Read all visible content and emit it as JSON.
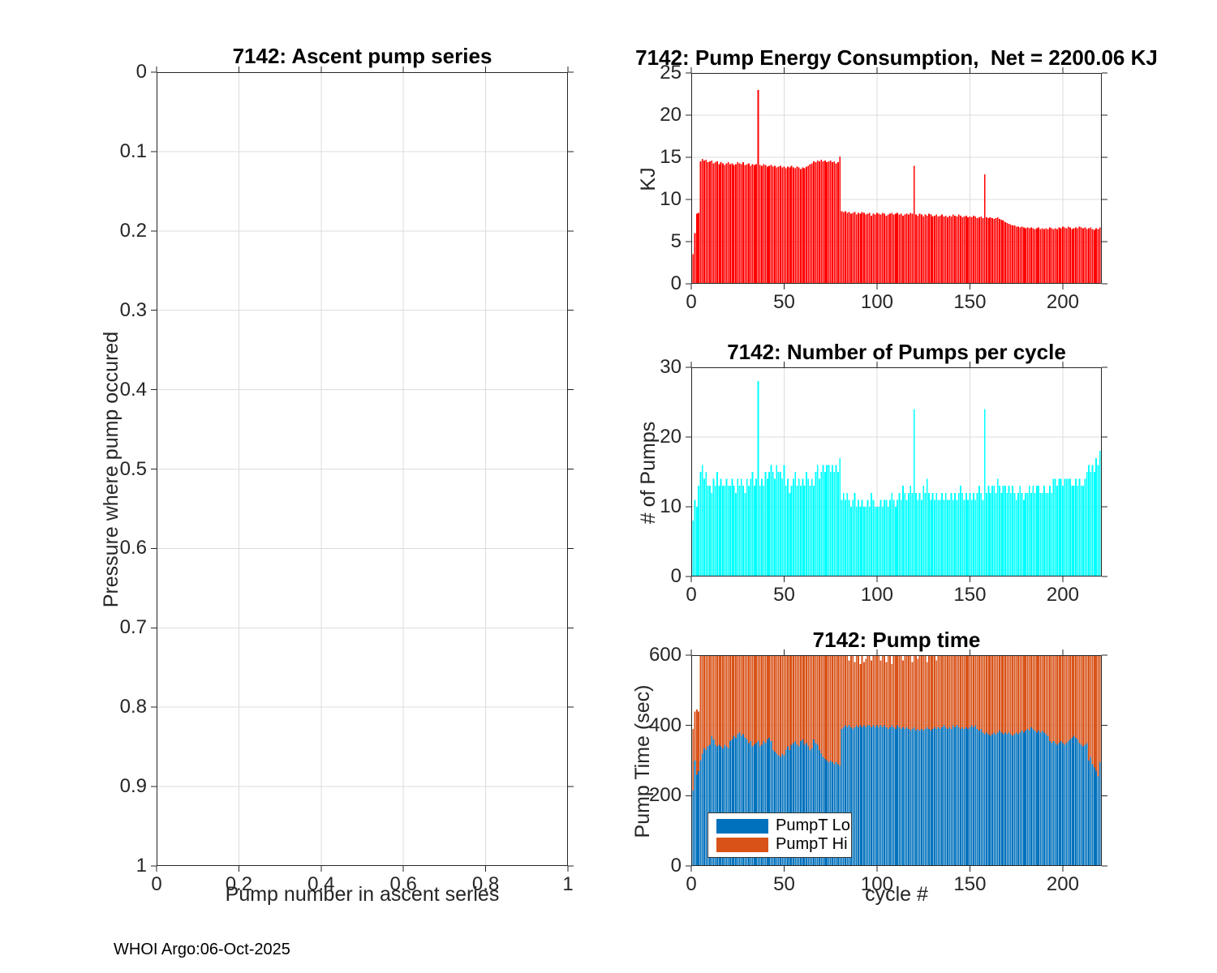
{
  "figure": {
    "footer_text": "WHOI Argo:06-Oct-2025"
  },
  "chart_data": [
    {
      "type": "bar",
      "title": "7142: Ascent pump series",
      "xlabel": "Pump number in ascent series",
      "ylabel": "Pressure where pump occured",
      "xlim": [
        0,
        1
      ],
      "ylim": [
        0,
        1
      ],
      "y_reversed": true,
      "grid": true,
      "xticks": [
        0,
        0.2,
        0.4,
        0.6,
        0.8,
        1
      ],
      "xtick_labels": [
        "0",
        "0.2",
        "0.4",
        "0.6",
        "0.8",
        "1"
      ],
      "yticks": [
        0,
        0.1,
        0.2,
        0.3,
        0.4,
        0.5,
        0.6,
        0.7,
        0.8,
        0.9,
        1
      ],
      "ytick_labels": [
        "0",
        "0.1",
        "0.2",
        "0.3",
        "0.4",
        "0.5",
        "0.6",
        "0.7",
        "0.8",
        "0.9",
        "1"
      ],
      "bar_color": "#0072bd",
      "values": []
    },
    {
      "type": "bar",
      "title": "7142: Pump Energy Consumption,  Net = 2200.06 KJ",
      "net_total_kj": "2200.06",
      "ylabel": "KJ",
      "bar_color": "#ff0000",
      "xlim": [
        0,
        221
      ],
      "ylim": [
        0,
        25
      ],
      "grid": true,
      "xticks": [
        0,
        50,
        100,
        150,
        200
      ],
      "xtick_labels": [
        "0",
        "50",
        "100",
        "150",
        "200"
      ],
      "yticks": [
        0,
        5,
        10,
        15,
        20,
        25
      ],
      "ytick_labels": [
        "0",
        "5",
        "10",
        "15",
        "20",
        "25"
      ],
      "values": [
        3.5,
        6,
        8.3,
        8.4,
        14.5,
        14.8,
        14.6,
        14.7,
        14.4,
        14.5,
        14.6,
        14.3,
        14.4,
        14.5,
        14.2,
        14.4,
        14.3,
        14.1,
        14.3,
        14.4,
        14.2,
        14.3,
        14.1,
        14.2,
        14.4,
        14.3,
        14.2,
        14.4,
        14.1,
        14.2,
        14.3,
        14,
        14.2,
        14.1,
        14.2,
        23,
        14.1,
        14,
        14.2,
        14.1,
        13.9,
        14,
        14.1,
        13.9,
        14,
        13.8,
        13.9,
        14,
        13.8,
        13.9,
        13.7,
        13.9,
        13.8,
        14,
        13.8,
        13.7,
        13.9,
        13.8,
        13.6,
        13.8,
        13.7,
        13.9,
        14,
        14.2,
        14.3,
        14.5,
        14.4,
        14.6,
        14.5,
        14.7,
        14.5,
        14.6,
        14.4,
        14.5,
        14.6,
        14.4,
        14.5,
        14.3,
        14.4,
        15.1,
        8.6,
        8.5,
        8.6,
        8.4,
        8.5,
        8.3,
        8.4,
        8.5,
        8.2,
        8.4,
        8.3,
        8.5,
        8.4,
        8.2,
        8.3,
        8.4,
        8.1,
        8.3,
        8.2,
        8.4,
        8.3,
        8.2,
        8.4,
        8.3,
        8.1,
        8.2,
        8.3,
        8.4,
        8.2,
        8.3,
        8.4,
        8.2,
        8.3,
        8.1,
        8.2,
        8.3,
        8.2,
        8.4,
        8.3,
        14,
        8.2,
        8.1,
        8.3,
        8.2,
        8,
        8.2,
        8.1,
        8.3,
        8.2,
        8,
        8.1,
        8.2,
        8,
        8.1,
        8.2,
        8,
        8.1,
        7.9,
        8.1,
        8,
        8.2,
        8.1,
        8,
        8.2,
        8.1,
        7.9,
        8,
        8.1,
        7.9,
        8,
        7.9,
        8.1,
        8,
        7.8,
        7.9,
        8,
        7.8,
        13,
        7.9,
        7.8,
        7.9,
        7.8,
        7.7,
        7.8,
        7.9,
        7.7,
        7.6,
        7.5,
        7.3,
        7.2,
        7.1,
        7,
        6.9,
        6.9,
        6.8,
        6.8,
        6.7,
        6.8,
        6.7,
        6.6,
        6.7,
        6.6,
        6.7,
        6.6,
        6.5,
        6.6,
        6.7,
        6.5,
        6.6,
        6.5,
        6.6,
        6.5,
        6.7,
        6.6,
        6.5,
        6.6,
        6.5,
        6.7,
        6.6,
        6.8,
        6.7,
        6.6,
        6.8,
        6.7,
        6.5,
        6.6,
        6.7,
        6.6,
        6.8,
        6.7,
        6.6,
        6.7,
        6.5,
        6.6,
        6.7,
        6.5,
        6.4,
        6.6,
        6.5,
        6.7
      ]
    },
    {
      "type": "bar",
      "title": "7142: Number of Pumps per cycle",
      "ylabel": "# of Pumps",
      "bar_color": "#00ffff",
      "xlim": [
        0,
        221
      ],
      "ylim": [
        0,
        30
      ],
      "grid": true,
      "xticks": [
        0,
        50,
        100,
        150,
        200
      ],
      "xtick_labels": [
        "0",
        "50",
        "100",
        "150",
        "200"
      ],
      "yticks": [
        0,
        10,
        20,
        30
      ],
      "ytick_labels": [
        "0",
        "10",
        "20",
        "30"
      ],
      "values": [
        8,
        11,
        10,
        13,
        15,
        16,
        14,
        15,
        13,
        13,
        12,
        14,
        13,
        15,
        13,
        14,
        13,
        13,
        14,
        13,
        13,
        14,
        13,
        12,
        14,
        13,
        14,
        13,
        12,
        14,
        13,
        14,
        15,
        13,
        14,
        28,
        13,
        14,
        13,
        15,
        14,
        15,
        16,
        15,
        14,
        16,
        15,
        15,
        14,
        16,
        13,
        14,
        12,
        13,
        14,
        15,
        13,
        14,
        13,
        14,
        13,
        15,
        14,
        13,
        14,
        13,
        15,
        16,
        14,
        15,
        16,
        15,
        16,
        16,
        15,
        16,
        15,
        16,
        15,
        17,
        11,
        12,
        11,
        12,
        11,
        10,
        11,
        12,
        10,
        11,
        10,
        11,
        10,
        10,
        11,
        10,
        12,
        11,
        10,
        10,
        10,
        11,
        10,
        11,
        11,
        10,
        11,
        12,
        11,
        10,
        11,
        12,
        11,
        13,
        12,
        11,
        12,
        13,
        12,
        24,
        12,
        11,
        12,
        11,
        13,
        12,
        14,
        12,
        11,
        12,
        11,
        12,
        11,
        11,
        12,
        11,
        12,
        11,
        11,
        12,
        11,
        12,
        11,
        12,
        13,
        12,
        11,
        12,
        11,
        12,
        11,
        12,
        11,
        12,
        13,
        12,
        11,
        24,
        12,
        13,
        12,
        13,
        13,
        12,
        14,
        13,
        12,
        13,
        13,
        12,
        13,
        12,
        13,
        12,
        11,
        12,
        13,
        12,
        11,
        12,
        12,
        13,
        12,
        13,
        12,
        13,
        13,
        12,
        12,
        13,
        12,
        12,
        13,
        12,
        14,
        14,
        13,
        14,
        14,
        13,
        14,
        14,
        14,
        14,
        13,
        13,
        14,
        13,
        14,
        13,
        13,
        14,
        15,
        16,
        15,
        16,
        15,
        17,
        16,
        18
      ]
    },
    {
      "type": "stacked-bar",
      "title": "7142: Pump time",
      "xlabel": "cycle #",
      "ylabel": "Pump Time (sec)",
      "xlim": [
        0,
        221
      ],
      "ylim": [
        0,
        600
      ],
      "grid": true,
      "xticks": [
        0,
        50,
        100,
        150,
        200
      ],
      "xtick_labels": [
        "0",
        "50",
        "100",
        "150",
        "200"
      ],
      "yticks": [
        0,
        200,
        400,
        600
      ],
      "ytick_labels": [
        "0",
        "200",
        "400",
        "600"
      ],
      "legend": {
        "position": "southwest"
      },
      "series": [
        {
          "name": "PumpT Lo",
          "color": "#0072bd",
          "values": [
            215,
            300,
            260,
            270,
            300,
            320,
            335,
            330,
            340,
            345,
            370,
            360,
            345,
            340,
            345,
            340,
            335,
            345,
            340,
            335,
            355,
            360,
            370,
            365,
            375,
            380,
            370,
            375,
            365,
            360,
            350,
            355,
            340,
            345,
            350,
            355,
            340,
            345,
            355,
            350,
            360,
            365,
            355,
            330,
            325,
            320,
            315,
            310,
            320,
            315,
            330,
            340,
            330,
            345,
            350,
            355,
            345,
            340,
            355,
            360,
            345,
            350,
            340,
            330,
            335,
            360,
            350,
            345,
            330,
            320,
            310,
            305,
            300,
            295,
            300,
            295,
            290,
            295,
            290,
            285,
            390,
            395,
            400,
            395,
            400,
            395,
            390,
            395,
            400,
            395,
            400,
            395,
            400,
            395,
            400,
            400,
            395,
            400,
            395,
            400,
            395,
            400,
            395,
            400,
            395,
            390,
            395,
            400,
            395,
            390,
            400,
            395,
            390,
            395,
            390,
            395,
            390,
            385,
            390,
            395,
            385,
            390,
            385,
            390,
            385,
            390,
            395,
            390,
            385,
            390,
            395,
            390,
            395,
            390,
            395,
            400,
            395,
            390,
            395,
            390,
            400,
            395,
            400,
            395,
            390,
            395,
            390,
            395,
            390,
            395,
            400,
            395,
            400,
            390,
            385,
            390,
            380,
            375,
            380,
            375,
            370,
            375,
            380,
            375,
            380,
            385,
            380,
            375,
            380,
            375,
            380,
            375,
            370,
            375,
            380,
            375,
            380,
            385,
            380,
            385,
            390,
            385,
            395,
            390,
            385,
            380,
            385,
            380,
            385,
            380,
            375,
            370,
            355,
            350,
            355,
            350,
            345,
            350,
            355,
            350,
            345,
            350,
            355,
            360,
            365,
            370,
            365,
            360,
            350,
            345,
            340,
            345,
            350,
            300,
            310,
            290,
            280,
            270,
            255,
            295
          ]
        },
        {
          "name": "PumpT Hi",
          "color": "#d95319",
          "values": [
            175,
            140,
            185,
            170,
            300,
            280,
            265,
            270,
            260,
            255,
            230,
            240,
            255,
            260,
            255,
            260,
            265,
            255,
            260,
            265,
            245,
            240,
            230,
            235,
            225,
            220,
            230,
            225,
            235,
            240,
            250,
            245,
            260,
            255,
            250,
            245,
            260,
            255,
            245,
            250,
            240,
            235,
            245,
            270,
            275,
            280,
            285,
            290,
            280,
            285,
            270,
            260,
            270,
            255,
            250,
            245,
            255,
            260,
            245,
            240,
            255,
            250,
            260,
            270,
            265,
            240,
            250,
            255,
            270,
            280,
            290,
            295,
            300,
            305,
            300,
            305,
            310,
            305,
            310,
            315,
            210,
            205,
            200,
            205,
            185,
            205,
            210,
            185,
            200,
            205,
            175,
            205,
            180,
            195,
            200,
            200,
            190,
            200,
            205,
            200,
            205,
            185,
            205,
            200,
            185,
            210,
            205,
            175,
            205,
            210,
            200,
            205,
            210,
            190,
            210,
            205,
            210,
            215,
            190,
            205,
            215,
            200,
            215,
            210,
            215,
            210,
            185,
            210,
            215,
            210,
            205,
            195,
            205,
            210,
            205,
            200,
            205,
            210,
            205,
            210,
            200,
            205,
            200,
            205,
            210,
            205,
            210,
            205,
            210,
            205,
            200,
            205,
            200,
            210,
            215,
            210,
            220,
            225,
            220,
            225,
            230,
            225,
            220,
            225,
            220,
            215,
            220,
            225,
            220,
            225,
            220,
            225,
            230,
            225,
            220,
            225,
            220,
            215,
            220,
            215,
            210,
            215,
            205,
            210,
            215,
            220,
            215,
            220,
            215,
            220,
            225,
            230,
            245,
            250,
            245,
            250,
            255,
            250,
            245,
            250,
            255,
            250,
            245,
            240,
            235,
            230,
            235,
            240,
            250,
            255,
            260,
            255,
            250,
            300,
            290,
            310,
            320,
            330,
            345,
            305
          ]
        }
      ]
    }
  ]
}
